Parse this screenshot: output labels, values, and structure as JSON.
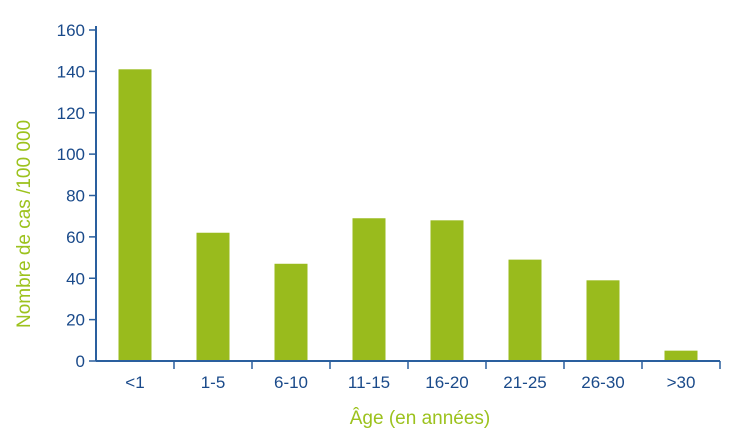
{
  "colors": {
    "bar": "#99bb1d",
    "axis": "#2a5f9e",
    "tick_text": "#1a4a8a",
    "axis_title": "#9cc21d"
  },
  "chart_data": {
    "type": "bar",
    "title": "",
    "xlabel": "Âge (en années)",
    "ylabel": "Nombre de cas /100 000",
    "categories": [
      "<1",
      "1-5",
      "6-10",
      "11-15",
      "16-20",
      "21-25",
      "26-30",
      ">30"
    ],
    "values": [
      141,
      62,
      47,
      69,
      68,
      49,
      39,
      5
    ],
    "ylim": [
      0,
      160
    ],
    "yticks": [
      "0",
      "20",
      "40",
      "60",
      "80",
      "100",
      "120",
      "140",
      "160"
    ],
    "grid": false,
    "legend": "none"
  }
}
